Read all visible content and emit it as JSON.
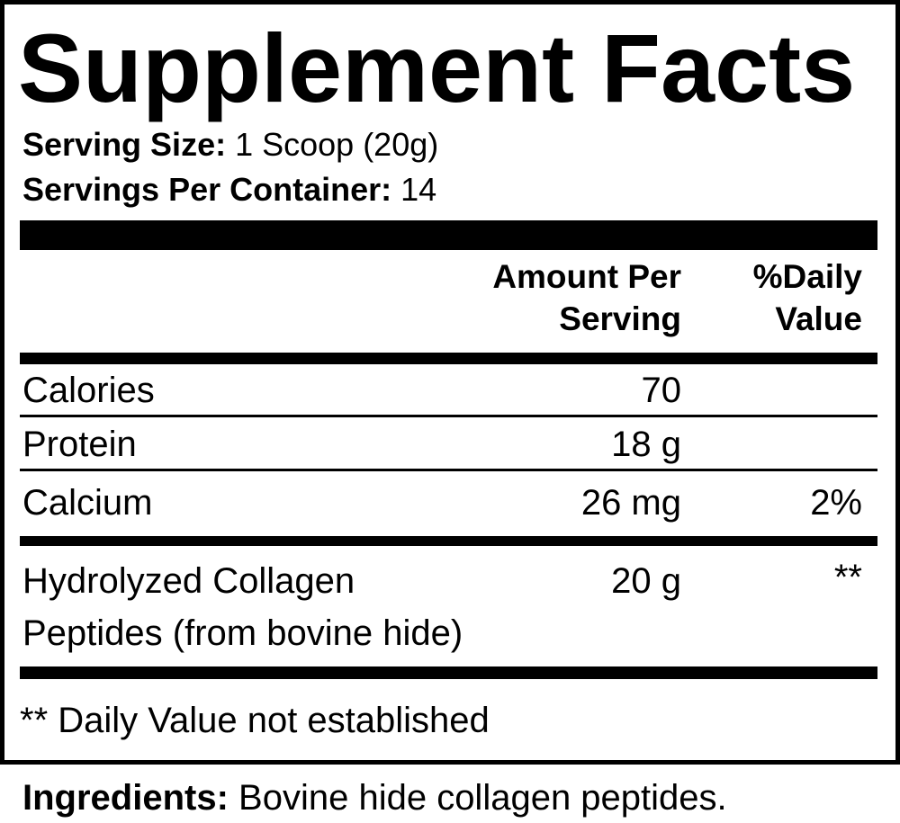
{
  "title": "Supplement Facts",
  "serving_size": {
    "label": "Serving Size:",
    "value": "1 Scoop (20g)"
  },
  "servings_per_container": {
    "label": "Servings Per Container:",
    "value": "14"
  },
  "columns": {
    "amount_line1": "Amount Per",
    "amount_line2": "Serving",
    "dv_line1": "%Daily",
    "dv_line2": "Value"
  },
  "rows": [
    {
      "name": "Calories",
      "amount": "70",
      "dv": ""
    },
    {
      "name": "Protein",
      "amount": "18 g",
      "dv": ""
    },
    {
      "name": "Calcium",
      "amount": "26 mg",
      "dv": "2%"
    },
    {
      "name_line1": "Hydrolyzed Collagen",
      "name_line2": "Peptides (from bovine hide)",
      "amount": "20 g",
      "dv": "**"
    }
  ],
  "footnote": "** Daily Value not established",
  "ingredients": {
    "label": "Ingredients:",
    "value": "Bovine hide collagen peptides."
  }
}
